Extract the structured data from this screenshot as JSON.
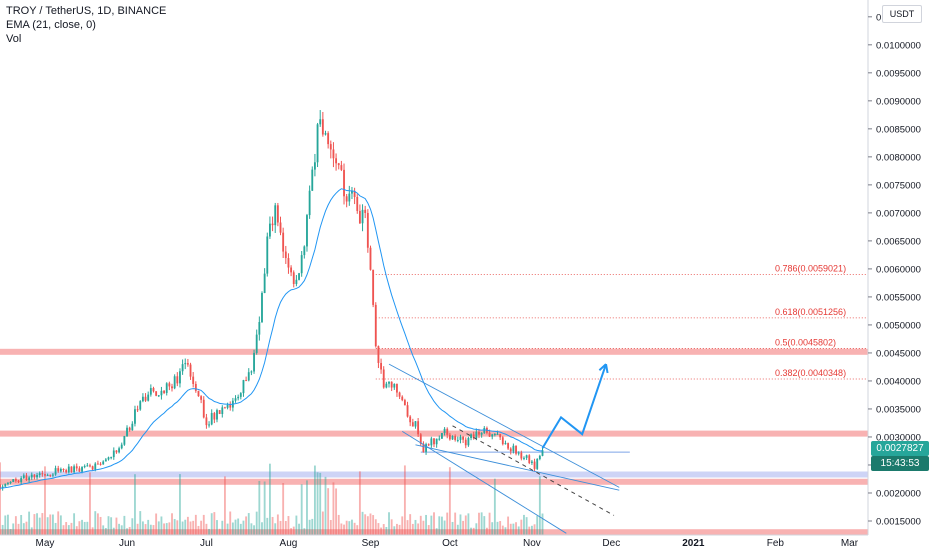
{
  "header": {
    "symbol_line": "TROY / TetherUS, 1D, BINANCE",
    "indicator_line": "EMA (21, close, 0)",
    "volume_line": "Vol"
  },
  "currency_label": "USDT",
  "last_price": "0.0027827",
  "countdown": "15:43:53",
  "colors": {
    "up": "#26a69a",
    "down": "#ef5350",
    "ema": "#2196f3",
    "zone": "#f7a5a5",
    "fib": "#e53935",
    "last": "#26a69a"
  },
  "chart_data": {
    "type": "candlestick",
    "series_name": "TROY / TetherUS",
    "ylim": [
      0.00125,
      0.0108
    ],
    "y_ticks": [
      0.0015,
      0.002,
      0.0025,
      0.003,
      0.0035,
      0.004,
      0.0045,
      0.005,
      0.0055,
      0.006,
      0.0065,
      0.007,
      0.0075,
      0.008,
      0.0085,
      0.009,
      0.0095,
      0.01,
      0.0105
    ],
    "y_tick_labels": [
      "0.0015000",
      "0.0020000",
      "0.0025000",
      "0.0030000",
      "0.0035000",
      "0.0040000",
      "0.0045000",
      "0.0050000",
      "0.0055000",
      "0.0060000",
      "0.0065000",
      "0.0070000",
      "0.0075000",
      "0.0080000",
      "0.0085000",
      "0.0090000",
      "0.0095000",
      "0.0100000",
      "0.0105000"
    ],
    "x_ticks": [
      {
        "label": "May",
        "day": 0
      },
      {
        "label": "Jun",
        "day": 31
      },
      {
        "label": "Jul",
        "day": 61
      },
      {
        "label": "Aug",
        "day": 92
      },
      {
        "label": "Sep",
        "day": 123
      },
      {
        "label": "Oct",
        "day": 153
      },
      {
        "label": "Nov",
        "day": 184
      },
      {
        "label": "Dec",
        "day": 214
      },
      {
        "label": "2021",
        "day": 245
      },
      {
        "label": "Feb",
        "day": 276
      },
      {
        "label": "Mar",
        "day": 304
      }
    ],
    "x_range_days": [
      -17,
      311
    ],
    "start_date": "2020-04-14",
    "path_points": [
      [
        -17,
        0.00215
      ],
      [
        -5,
        0.0023
      ],
      [
        5,
        0.0024
      ],
      [
        15,
        0.00245
      ],
      [
        22,
        0.0025
      ],
      [
        28,
        0.0028
      ],
      [
        33,
        0.0033
      ],
      [
        36,
        0.0037
      ],
      [
        42,
        0.0038
      ],
      [
        50,
        0.004
      ],
      [
        53,
        0.0044
      ],
      [
        57,
        0.0039
      ],
      [
        61,
        0.0033
      ],
      [
        66,
        0.0034
      ],
      [
        72,
        0.0036
      ],
      [
        78,
        0.0042
      ],
      [
        82,
        0.0055
      ],
      [
        85,
        0.007
      ],
      [
        88,
        0.0069
      ],
      [
        92,
        0.0061
      ],
      [
        95,
        0.0058
      ],
      [
        98,
        0.0064
      ],
      [
        101,
        0.0076
      ],
      [
        103,
        0.0086
      ],
      [
        107,
        0.0083
      ],
      [
        110,
        0.008
      ],
      [
        113,
        0.0075
      ],
      [
        117,
        0.0071
      ],
      [
        121,
        0.0068
      ],
      [
        123,
        0.006
      ],
      [
        125,
        0.0046
      ],
      [
        128,
        0.004
      ],
      [
        132,
        0.0039
      ],
      [
        136,
        0.0035
      ],
      [
        140,
        0.0032
      ],
      [
        143,
        0.0028
      ],
      [
        146,
        0.0029
      ],
      [
        150,
        0.0031
      ],
      [
        154,
        0.003
      ],
      [
        158,
        0.0029
      ],
      [
        162,
        0.00305
      ],
      [
        166,
        0.0031
      ],
      [
        170,
        0.003
      ],
      [
        174,
        0.0029
      ],
      [
        178,
        0.00275
      ],
      [
        182,
        0.0026
      ],
      [
        185,
        0.00245
      ],
      [
        188,
        0.00278
      ]
    ],
    "horizontal_zones": [
      {
        "price": 0.00452,
        "color": "red"
      },
      {
        "price": 0.00306,
        "color": "red"
      },
      {
        "price": 0.0022,
        "color": "red"
      },
      {
        "price": 0.00233,
        "color": "blue"
      },
      {
        "price": 0.0013,
        "color": "red"
      }
    ],
    "support_line": {
      "price": 0.00273,
      "from_day": 142,
      "to_day": 221
    },
    "fibonacci": [
      {
        "label": "0.786(0.0059021)",
        "price": 0.0059021
      },
      {
        "label": "0.618(0.0051256)",
        "price": 0.0051256
      },
      {
        "label": "0.5(0.0045802)",
        "price": 0.0045802
      },
      {
        "label": "0.382(0.0040348)",
        "price": 0.0040348
      }
    ],
    "channel_lines": [
      {
        "from": [
          130,
          0.0043
        ],
        "to": [
          217,
          0.0021
        ]
      },
      {
        "from": [
          140,
          0.00286
        ],
        "to": [
          217,
          0.00205
        ]
      },
      {
        "from": [
          135,
          0.0031
        ],
        "to": [
          197,
          0.00128
        ]
      }
    ],
    "dashed_line": {
      "from": [
        154,
        0.0032
      ],
      "to": [
        215,
        0.0016
      ]
    },
    "projection_arrow": [
      [
        188,
        0.0028
      ],
      [
        195,
        0.00335
      ],
      [
        203,
        0.00305
      ],
      [
        212,
        0.0043
      ]
    ]
  }
}
